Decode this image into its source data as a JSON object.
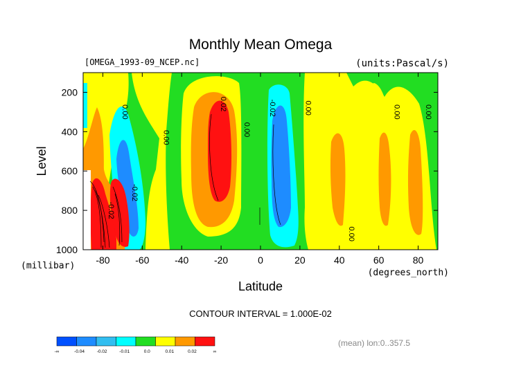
{
  "chart_data": {
    "type": "heatmap",
    "title": "Monthly Mean Omega",
    "file_label": "[OMEGA_1993-09_NCEP.nc]",
    "units_label": "(units:Pascal/s)",
    "xlabel": "Latitude",
    "x_units": "(degrees_north)",
    "ylabel": "Level",
    "y_units": "(millibar)",
    "xlim": [
      -90,
      90
    ],
    "ylim": [
      1000,
      100
    ],
    "x_ticks": [
      "-80",
      "-60",
      "-40",
      "-20",
      "0",
      "20",
      "40",
      "60",
      "80"
    ],
    "x_tick_values": [
      -80,
      -60,
      -40,
      -20,
      0,
      20,
      40,
      60,
      80
    ],
    "y_ticks": [
      "200",
      "400",
      "600",
      "800",
      "1000"
    ],
    "y_tick_values": [
      200,
      400,
      600,
      800,
      1000
    ],
    "contour_interval": "CONTOUR INTERVAL = 1.000E-02",
    "footnote": "(mean) lon:0..357.5",
    "colorbar": {
      "colors": [
        "#0050ff",
        "#1e8cff",
        "#32bef0",
        "#00ffff",
        "#22dd22",
        "#ffff00",
        "#ff9900",
        "#ff1111"
      ],
      "labels": [
        "-∞",
        "-0.04",
        "-0.02",
        "-0.01",
        "0.0",
        "0.01",
        "0.02",
        "∞"
      ]
    },
    "contour_labels": [
      {
        "text": "0.00",
        "lat": -70,
        "lev": 300
      },
      {
        "text": "0.00",
        "lat": -49,
        "lev": 430
      },
      {
        "text": "-0.02",
        "lat": -65,
        "lev": 710
      },
      {
        "text": "-0.02",
        "lat": -77,
        "lev": 800
      },
      {
        "text": "0.02",
        "lat": -20,
        "lev": 260
      },
      {
        "text": "0.00",
        "lat": -8,
        "lev": 390
      },
      {
        "text": "-0.02",
        "lat": 5,
        "lev": 280
      },
      {
        "text": "0.00",
        "lat": 23,
        "lev": 280
      },
      {
        "text": "0.00",
        "lat": 45,
        "lev": 920
      },
      {
        "text": "0.00",
        "lat": 68,
        "lev": 300
      },
      {
        "text": "0.00",
        "lat": 84,
        "lev": 300
      }
    ]
  }
}
